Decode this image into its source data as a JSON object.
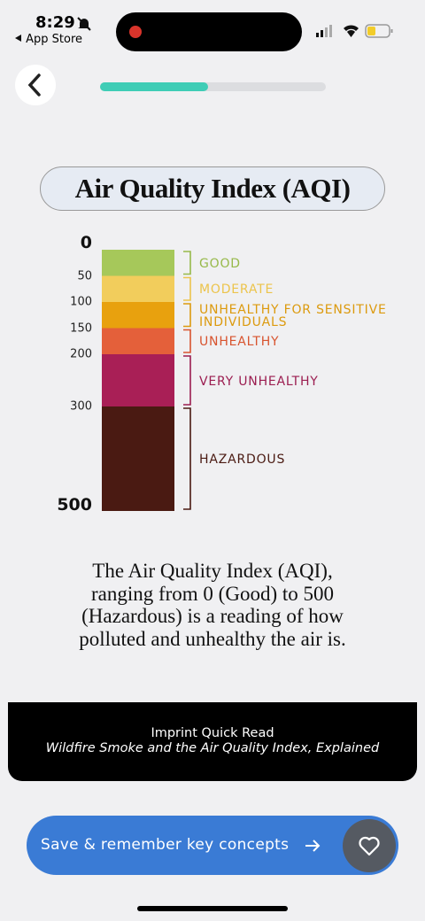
{
  "status_bar": {
    "time": "8:29",
    "back_app": "App Store"
  },
  "progress": 0.48,
  "heading": "Air Quality Index (AQI)",
  "aqi_scale": {
    "ticks": [
      0,
      50,
      100,
      150,
      200,
      300,
      500
    ],
    "bands": [
      {
        "label": "GOOD",
        "color": "#a6c85a",
        "label_color": "#97b94a"
      },
      {
        "label": "MODERATE",
        "color": "#f2cd5c",
        "label_color": "#ecc44c"
      },
      {
        "label": "UNHEALTHY FOR SENSITIVE INDIVIDUALS",
        "color": "#e8a10e",
        "label_color": "#dc9a0e"
      },
      {
        "label": "UNHEALTHY",
        "color": "#e4603a",
        "label_color": "#d8542f"
      },
      {
        "label": "VERY UNHEALTHY",
        "color": "#a91f56",
        "label_color": "#9b1d50"
      },
      {
        "label": "HAZARDOUS",
        "color": "#4a1a12",
        "label_color": "#4a1a12"
      }
    ]
  },
  "description": "The Air Quality Index (AQI), ranging from 0 (Good) to 500 (Hazardous) is a reading of how polluted and unhealthy the air is.",
  "quick_read": {
    "label": "Imprint Quick Read",
    "title": "Wildfire Smoke and the Air Quality Index, Explained"
  },
  "button": {
    "label": "Save & remember key concepts"
  }
}
